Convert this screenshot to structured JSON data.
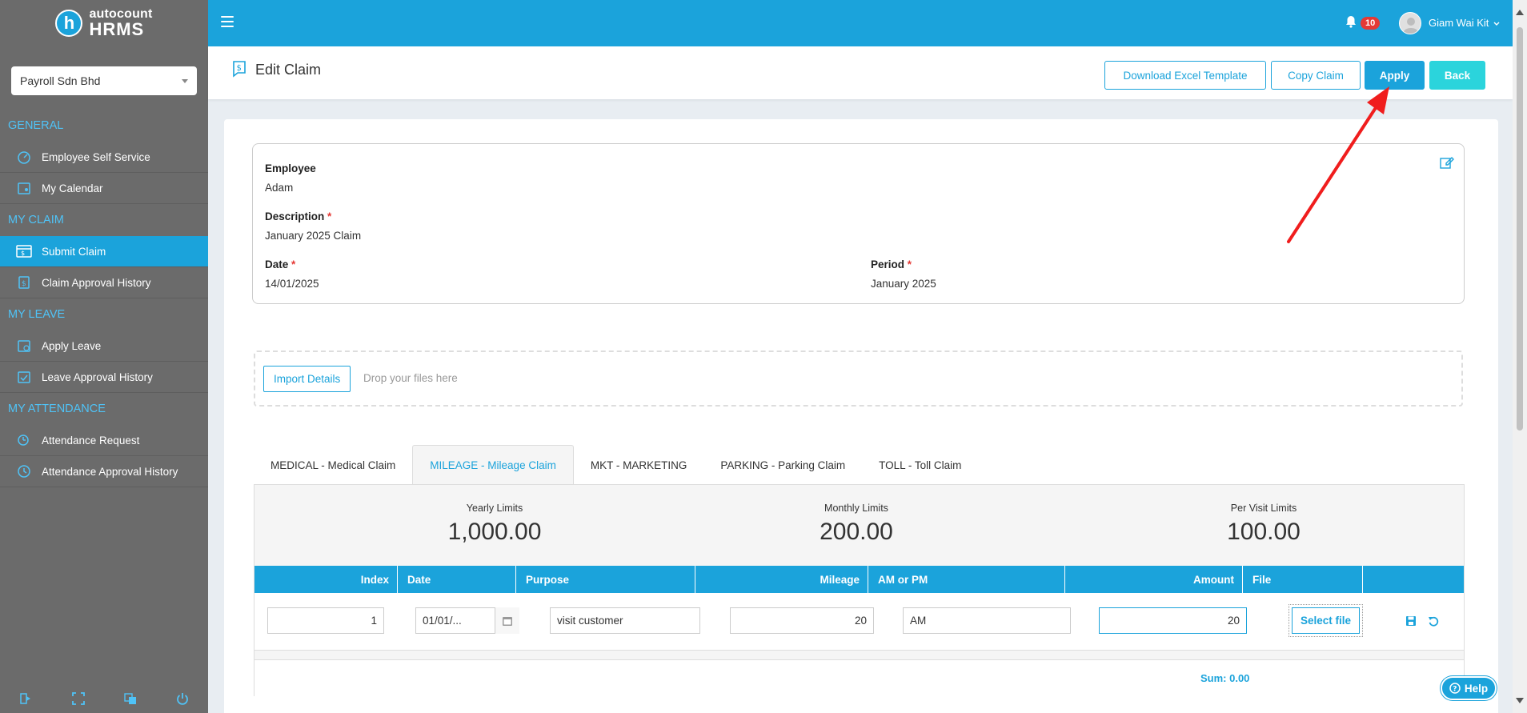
{
  "sidebar": {
    "logo_brand": "autocount",
    "logo_product": "HRMS",
    "logo_letter": "h",
    "company": "Payroll Sdn Bhd",
    "sections": [
      {
        "title": "GENERAL",
        "items": [
          {
            "label": "Employee Self Service",
            "icon": "dashboard-icon"
          },
          {
            "label": "My Calendar",
            "icon": "calendar-user-icon"
          }
        ]
      },
      {
        "title": "MY CLAIM",
        "items": [
          {
            "label": "Submit Claim",
            "icon": "claim-icon",
            "active": true
          },
          {
            "label": "Claim Approval History",
            "icon": "claim-history-icon"
          }
        ]
      },
      {
        "title": "MY LEAVE",
        "items": [
          {
            "label": "Apply Leave",
            "icon": "leave-icon"
          },
          {
            "label": "Leave Approval History",
            "icon": "leave-history-icon"
          }
        ]
      },
      {
        "title": "MY ATTENDANCE",
        "items": [
          {
            "label": "Attendance Request",
            "icon": "attendance-icon"
          },
          {
            "label": "Attendance Approval History",
            "icon": "attendance-history-icon"
          }
        ]
      }
    ]
  },
  "topbar": {
    "notification_count": "10",
    "user_name": "Giam Wai Kit"
  },
  "page": {
    "title": "Edit Claim",
    "buttons": {
      "download": "Download Excel Template",
      "copy": "Copy Claim",
      "apply": "Apply",
      "back": "Back"
    }
  },
  "claim": {
    "employee_label": "Employee",
    "employee_value": "Adam",
    "description_label": "Description",
    "description_value": "January 2025 Claim",
    "date_label": "Date",
    "date_value": "14/01/2025",
    "period_label": "Period",
    "period_value": "January 2025",
    "required_mark": "*"
  },
  "import": {
    "button": "Import Details",
    "drop_text": "Drop your files here"
  },
  "tabs": [
    "MEDICAL - Medical Claim",
    "MILEAGE - Mileage Claim",
    "MKT - MARKETING",
    "PARKING - Parking Claim",
    "TOLL - Toll Claim"
  ],
  "active_tab": 1,
  "limits": {
    "yearly_label": "Yearly Limits",
    "yearly_value": "1,000.00",
    "monthly_label": "Monthly Limits",
    "monthly_value": "200.00",
    "visit_label": "Per Visit Limits",
    "visit_value": "100.00"
  },
  "grid": {
    "columns": [
      "Index",
      "Date",
      "Purpose",
      "Mileage",
      "AM or PM",
      "Amount",
      "File"
    ],
    "row": {
      "index": "1",
      "date": "01/01/...",
      "purpose": "visit customer",
      "mileage": "20",
      "am_pm": "AM",
      "amount": "20",
      "file_button": "Select file"
    },
    "sum": "Sum: 0.00"
  },
  "help": "Help",
  "colors": {
    "primary": "#1ba3db",
    "sidebar": "#6b6b6b",
    "teal": "#2bd4dc",
    "annotation_arrow": "#f01d1d"
  }
}
